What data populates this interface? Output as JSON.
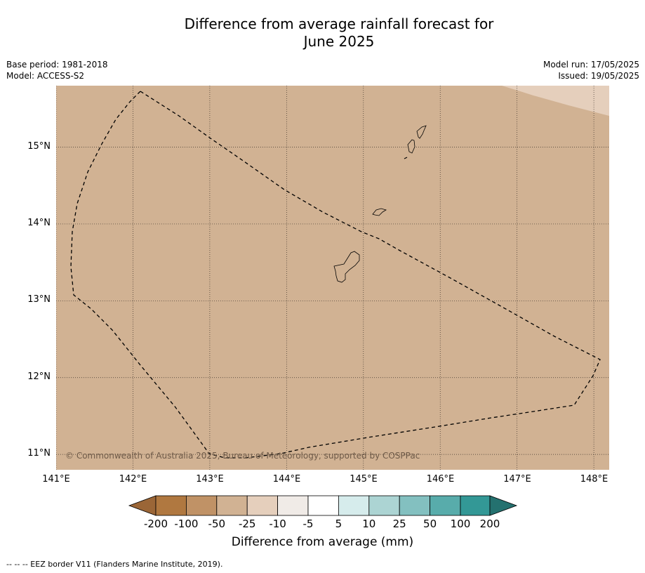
{
  "title": {
    "line1": "Difference from average rainfall forecast for",
    "line2": "June 2025"
  },
  "info": {
    "base_period": "Base period: 1981-2018",
    "model": "Model: ACCESS-S2",
    "model_run": "Model run: 17/05/2025",
    "issued": "Issued: 19/05/2025"
  },
  "map": {
    "lon_range": [
      141.0,
      148.2
    ],
    "lat_range": [
      10.8,
      15.8
    ],
    "lon_ticks": [
      {
        "value": 141,
        "label": "141°E"
      },
      {
        "value": 142,
        "label": "142°E"
      },
      {
        "value": 143,
        "label": "143°E"
      },
      {
        "value": 144,
        "label": "144°E"
      },
      {
        "value": 145,
        "label": "145°E"
      },
      {
        "value": 146,
        "label": "146°E"
      },
      {
        "value": 147,
        "label": "147°E"
      },
      {
        "value": 148,
        "label": "148°E"
      }
    ],
    "lat_ticks": [
      {
        "value": 15,
        "label": "15°N"
      },
      {
        "value": 14,
        "label": "14°N"
      },
      {
        "value": 13,
        "label": "13°N"
      },
      {
        "value": 12,
        "label": "12°N"
      },
      {
        "value": 11,
        "label": "11°N"
      }
    ],
    "background_category": "-25 to -50",
    "copyright": "© Commonwealth of Australia 2025, Bureau of Meteorology, supported by COSPPac"
  },
  "colors": {
    "c_m200_lo": "#9b6637",
    "c_m200_m100": "#b07840",
    "c_m100_m50": "#c09266",
    "c_m50_m25": "#d1b293",
    "c_m25_m10": "#e5cfbc",
    "c_m10_m5": "#f0ebe7",
    "c_m5_5": "#ffffff",
    "c_5_10": "#d6ecec",
    "c_10_25": "#acd4d3",
    "c_25_50": "#83c0c0",
    "c_50_100": "#58acab",
    "c_100_200": "#339896",
    "c_200_hi": "#24716f"
  },
  "colorbar": {
    "ticks": [
      "-200",
      "-100",
      "-50",
      "-25",
      "-10",
      "-5",
      "5",
      "10",
      "25",
      "50",
      "100",
      "200"
    ],
    "title": "Difference from average (mm)"
  },
  "footnote": "--  --  -- EEZ border V11 (Flanders Marine Institute, 2019)."
}
